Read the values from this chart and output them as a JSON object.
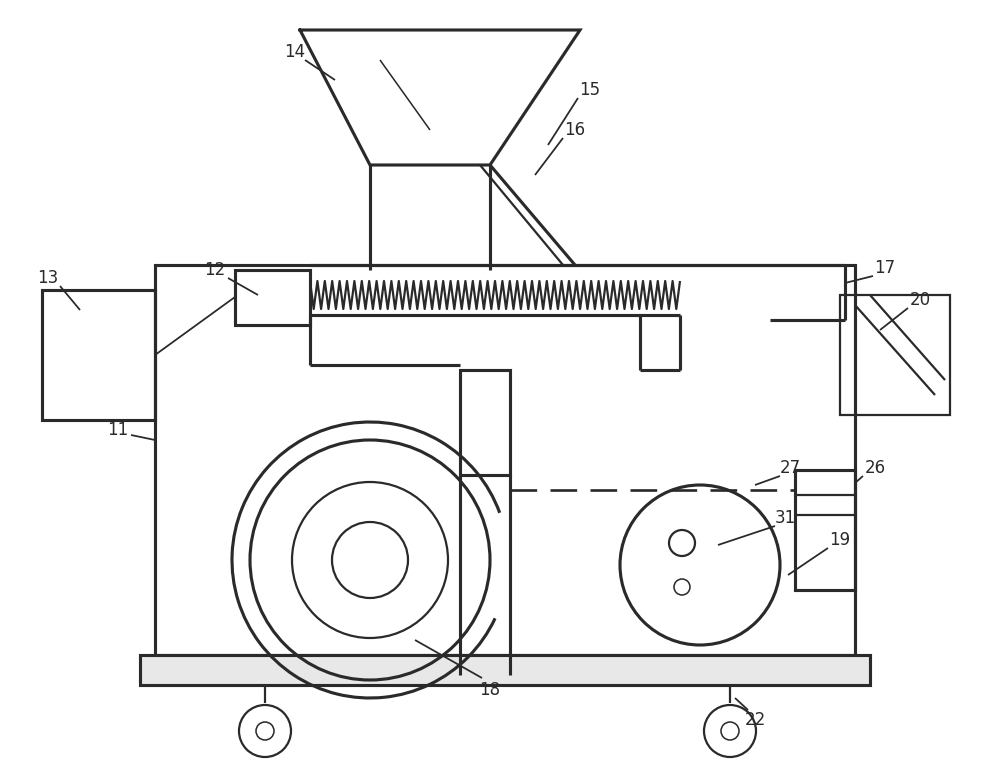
{
  "bg_color": "#ffffff",
  "line_color": "#2a2a2a",
  "lw": 1.6,
  "fig_width": 10.0,
  "fig_height": 7.66
}
